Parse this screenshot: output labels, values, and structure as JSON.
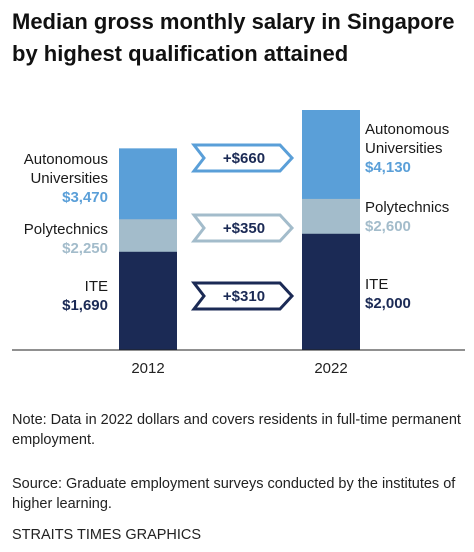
{
  "chart_data": {
    "type": "bar",
    "title": "Median gross monthly salary in Singapore by highest qualification attained",
    "categories": [
      "2012",
      "2022"
    ],
    "series": [
      {
        "name": "Autonomous Universities",
        "color": "#5a9fd8",
        "values": [
          3470,
          4130
        ],
        "value_labels": [
          "$3,470",
          "$4,130"
        ]
      },
      {
        "name": "Polytechnics",
        "color": "#a3bccb",
        "values": [
          2250,
          2600
        ],
        "value_labels": [
          "$2,250",
          "$2,600"
        ]
      },
      {
        "name": "ITE",
        "color": "#1b2a55",
        "values": [
          1690,
          2000
        ],
        "value_labels": [
          "$1,690",
          "$2,000"
        ]
      }
    ],
    "annotations": [
      "+$660",
      "+$350",
      "+$310"
    ],
    "note": "Note: Data in 2022 dollars and covers residents in full-time permanent employment.",
    "source": "Source: Graduate employment surveys conducted by the institutes of higher learning.",
    "credit": "STRAITS TIMES GRAPHICS"
  }
}
